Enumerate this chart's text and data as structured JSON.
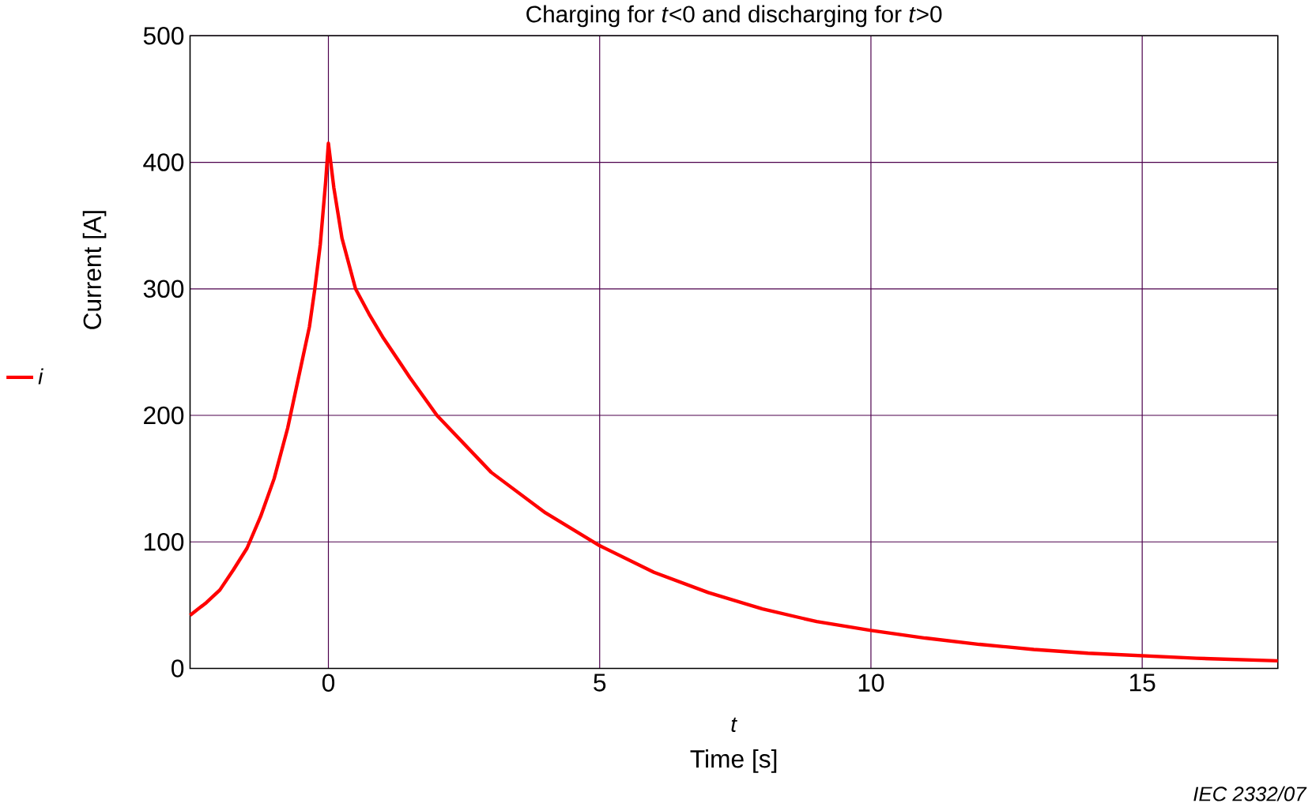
{
  "chart_data": {
    "type": "line",
    "title": "Charging for *t*<0 and discharging for *t*>0",
    "xlabel": "Time    [s]",
    "ylabel": "Current   [A]",
    "annotations": [
      "*t*",
      "*IEC   2332/07*"
    ],
    "series": [
      {
        "name": "*i*",
        "color": "#ff0000",
        "x": [
          -2.55,
          -2.25,
          -2,
          -1.75,
          -1.5,
          -1.25,
          -1,
          -0.75,
          -0.5,
          -0.35,
          -0.25,
          -0.15,
          -0.1,
          -0.05,
          0,
          0.1,
          0.25,
          0.5,
          0.75,
          1,
          1.5,
          2,
          3,
          4,
          5,
          6,
          7,
          8,
          9,
          10,
          11,
          12,
          13,
          14,
          15,
          16,
          17.5
        ],
        "values": [
          42,
          52,
          62,
          78,
          95,
          120,
          150,
          190,
          240,
          270,
          300,
          335,
          360,
          385,
          415,
          380,
          340,
          300,
          280,
          262,
          230,
          200,
          155,
          123,
          97,
          76,
          60,
          47,
          37,
          30,
          24,
          19,
          15,
          12,
          10,
          8,
          6
        ]
      }
    ],
    "xlim": [
      -2.55,
      17.5
    ],
    "ylim": [
      0,
      500
    ],
    "xticks": [
      0,
      5,
      10,
      15
    ],
    "yticks": [
      0,
      100,
      200,
      300,
      400,
      500
    ],
    "grid": true,
    "legend": "left",
    "marker": "none",
    "line_style": "solid"
  }
}
